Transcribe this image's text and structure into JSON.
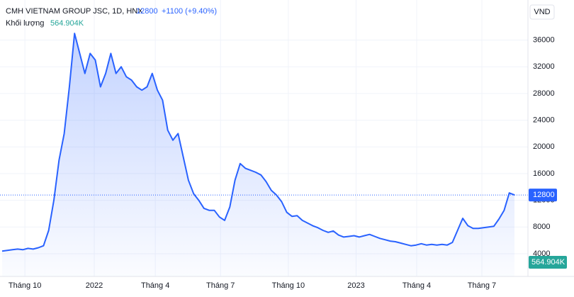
{
  "chart_data": {
    "type": "area",
    "title": "CMH VIETNAM GROUP JSC, 1D, HNX",
    "price": 12800,
    "change": "+1100 (+9.40%)",
    "volume_label": "Khối lượng",
    "volume": "564.904K",
    "currency": "VND",
    "color": "#2962ff",
    "values": [
      4400,
      4500,
      4600,
      4700,
      4600,
      4800,
      4700,
      4900,
      5200,
      7500,
      12000,
      18000,
      22000,
      29000,
      37000,
      34000,
      31000,
      34000,
      33000,
      29000,
      31000,
      34000,
      31000,
      32000,
      30500,
      30000,
      29000,
      28500,
      29000,
      31000,
      28500,
      27000,
      22500,
      21000,
      22000,
      18500,
      15000,
      13000,
      12000,
      10800,
      10500,
      10500,
      9500,
      9000,
      11000,
      15000,
      17500,
      16800,
      16500,
      16200,
      15800,
      14800,
      13500,
      12800,
      11800,
      10200,
      9600,
      9700,
      9000,
      8600,
      8200,
      7900,
      7500,
      7200,
      7400,
      6800,
      6500,
      6600,
      6700,
      6500,
      6700,
      6900,
      6600,
      6300,
      6100,
      5900,
      5800,
      5600,
      5400,
      5200,
      5300,
      5500,
      5300,
      5400,
      5300,
      5400,
      5300,
      5700,
      7500,
      9300,
      8200,
      7800,
      7800,
      7900,
      8000,
      8100,
      9200,
      10500,
      13100,
      12800
    ],
    "xticks": [
      {
        "value": 4.4,
        "label": "Tháng 10"
      },
      {
        "value": 17.8,
        "label": "2022"
      },
      {
        "value": 29.6,
        "label": "Tháng 4"
      },
      {
        "value": 42.2,
        "label": "Tháng 7"
      },
      {
        "value": 55.3,
        "label": "Tháng 10"
      },
      {
        "value": 68.4,
        "label": "2023"
      },
      {
        "value": 80.1,
        "label": "Tháng 4"
      },
      {
        "value": 92.7,
        "label": "Tháng 7"
      }
    ],
    "ylim": [
      600,
      42000
    ],
    "yticks": [
      4000,
      8000,
      12000,
      16000,
      20000,
      24000,
      28000,
      32000,
      36000
    ],
    "grid": true
  }
}
